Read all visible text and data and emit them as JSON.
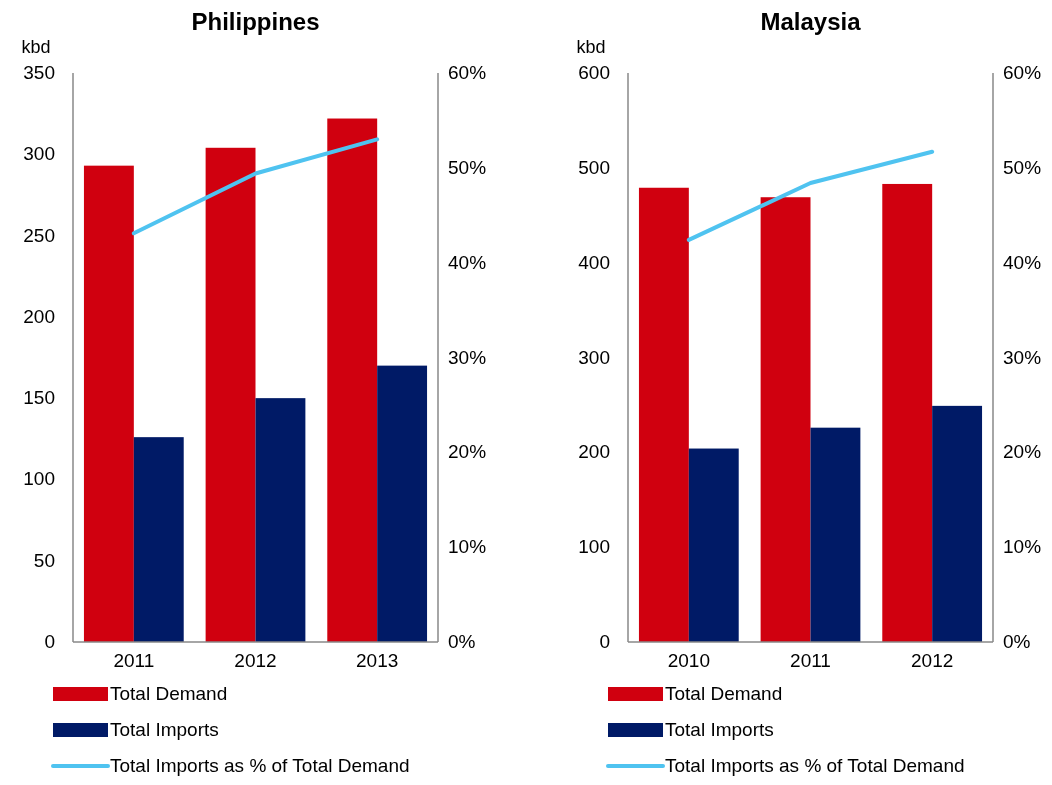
{
  "chart_data": [
    {
      "type": "bar",
      "title": "Philippines",
      "ylabel": "kbd",
      "categories": [
        "2011",
        "2012",
        "2013"
      ],
      "ylim": [
        0,
        350
      ],
      "yticks": [
        0,
        50,
        100,
        150,
        200,
        250,
        300,
        350
      ],
      "y2lim": [
        0,
        60
      ],
      "y2ticks": [
        {
          "value": 0,
          "label": "0%"
        },
        {
          "value": 10,
          "label": "10%"
        },
        {
          "value": 20,
          "label": "20%"
        },
        {
          "value": 30,
          "label": "30%"
        },
        {
          "value": 40,
          "label": "40%"
        },
        {
          "value": 50,
          "label": "50%"
        },
        {
          "value": 60,
          "label": "60%"
        }
      ],
      "legend": "bottom",
      "grid": false,
      "series": [
        {
          "name": "Total Demand",
          "color": "#d0000f",
          "values": [
            293,
            304,
            322
          ]
        },
        {
          "name": "Total Imports",
          "color": "#001a66",
          "values": [
            126,
            150,
            170
          ]
        },
        {
          "name": "Total Imports as % of Total Demand",
          "type": "line",
          "axis": "y2",
          "color": "#4fc3f0",
          "values": [
            43.1,
            49.4,
            53
          ]
        }
      ]
    },
    {
      "type": "bar",
      "title": "Malaysia",
      "ylabel": "kbd",
      "categories": [
        "2010",
        "2011",
        "2012"
      ],
      "ylim": [
        0,
        600
      ],
      "yticks": [
        0,
        100,
        200,
        300,
        400,
        500,
        600
      ],
      "y2lim": [
        0,
        60
      ],
      "y2ticks": [
        {
          "value": 0,
          "label": "0%"
        },
        {
          "value": 10,
          "label": "10%"
        },
        {
          "value": 20,
          "label": "20%"
        },
        {
          "value": 30,
          "label": "30%"
        },
        {
          "value": 40,
          "label": "40%"
        },
        {
          "value": 50,
          "label": "50%"
        },
        {
          "value": 60,
          "label": "60%"
        }
      ],
      "legend": "bottom",
      "grid": false,
      "series": [
        {
          "name": "Total Demand",
          "color": "#d0000f",
          "values": [
            479,
            469,
            483
          ]
        },
        {
          "name": "Total Imports",
          "color": "#001a66",
          "values": [
            204,
            226,
            249
          ]
        },
        {
          "name": "Total Imports as % of Total Demand",
          "type": "line",
          "axis": "y2",
          "color": "#4fc3f0",
          "values": [
            42.4,
            48.4,
            51.7
          ]
        }
      ]
    }
  ]
}
